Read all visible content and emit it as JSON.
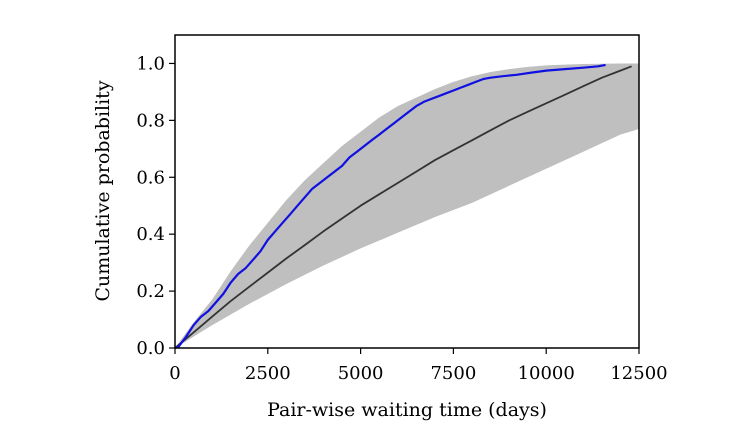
{
  "chart_data": {
    "type": "line",
    "xlabel": "Pair-wise waiting time (days)",
    "ylabel": "Cumulative probability",
    "xlim": [
      0,
      12500
    ],
    "ylim": [
      0,
      1.1
    ],
    "grid": false,
    "legend": "none",
    "x_ticks": [
      0,
      2500,
      5000,
      7500,
      10000,
      12500
    ],
    "x_tick_labels": [
      "0",
      "2500",
      "5000",
      "7500",
      "10000",
      "12500"
    ],
    "y_ticks": [
      0.0,
      0.2,
      0.4,
      0.6,
      0.8,
      1.0
    ],
    "y_tick_labels": [
      "0.0",
      "0.2",
      "0.4",
      "0.6",
      "0.8",
      "1.0"
    ],
    "band": {
      "color": "#bfbfbf",
      "upper": [
        [
          0,
          0
        ],
        [
          500,
          0.09
        ],
        [
          1000,
          0.17
        ],
        [
          1500,
          0.27
        ],
        [
          2000,
          0.36
        ],
        [
          2500,
          0.44
        ],
        [
          3000,
          0.52
        ],
        [
          3500,
          0.59
        ],
        [
          4000,
          0.65
        ],
        [
          4500,
          0.71
        ],
        [
          5000,
          0.76
        ],
        [
          5500,
          0.81
        ],
        [
          6000,
          0.85
        ],
        [
          6500,
          0.88
        ],
        [
          7000,
          0.91
        ],
        [
          7500,
          0.935
        ],
        [
          8000,
          0.955
        ],
        [
          8500,
          0.97
        ],
        [
          9000,
          0.98
        ],
        [
          9500,
          0.988
        ],
        [
          10000,
          0.993
        ],
        [
          10500,
          0.996
        ],
        [
          11000,
          0.998
        ],
        [
          11500,
          0.999
        ],
        [
          12000,
          1.0
        ],
        [
          12500,
          1.0
        ]
      ],
      "lower": [
        [
          0,
          0
        ],
        [
          1000,
          0.08
        ],
        [
          2000,
          0.155
        ],
        [
          3000,
          0.225
        ],
        [
          4000,
          0.29
        ],
        [
          5000,
          0.35
        ],
        [
          6000,
          0.405
        ],
        [
          7000,
          0.46
        ],
        [
          8000,
          0.51
        ],
        [
          9000,
          0.57
        ],
        [
          10000,
          0.63
        ],
        [
          11000,
          0.69
        ],
        [
          11500,
          0.72
        ],
        [
          12000,
          0.75
        ],
        [
          12500,
          0.77
        ]
      ]
    },
    "series": [
      {
        "color": "#333333",
        "points": [
          [
            0,
            0
          ],
          [
            500,
            0.055
          ],
          [
            1000,
            0.11
          ],
          [
            1500,
            0.165
          ],
          [
            2000,
            0.215
          ],
          [
            2500,
            0.265
          ],
          [
            3000,
            0.315
          ],
          [
            3500,
            0.362
          ],
          [
            4000,
            0.41
          ],
          [
            4500,
            0.455
          ],
          [
            5000,
            0.5
          ],
          [
            5500,
            0.54
          ],
          [
            6000,
            0.58
          ],
          [
            6500,
            0.62
          ],
          [
            7000,
            0.66
          ],
          [
            7500,
            0.695
          ],
          [
            8000,
            0.73
          ],
          [
            8500,
            0.765
          ],
          [
            9000,
            0.8
          ],
          [
            9500,
            0.83
          ],
          [
            10000,
            0.86
          ],
          [
            10500,
            0.89
          ],
          [
            11000,
            0.92
          ],
          [
            11500,
            0.95
          ],
          [
            12000,
            0.975
          ],
          [
            12300,
            0.99
          ]
        ]
      },
      {
        "color": "#1010e0",
        "points": [
          [
            0,
            0
          ],
          [
            100,
            0.005
          ],
          [
            300,
            0.04
          ],
          [
            500,
            0.08
          ],
          [
            700,
            0.11
          ],
          [
            900,
            0.13
          ],
          [
            1100,
            0.16
          ],
          [
            1300,
            0.19
          ],
          [
            1500,
            0.23
          ],
          [
            1700,
            0.26
          ],
          [
            1900,
            0.28
          ],
          [
            2100,
            0.31
          ],
          [
            2300,
            0.34
          ],
          [
            2500,
            0.38
          ],
          [
            2700,
            0.41
          ],
          [
            2900,
            0.44
          ],
          [
            3100,
            0.47
          ],
          [
            3300,
            0.5
          ],
          [
            3500,
            0.53
          ],
          [
            3700,
            0.56
          ],
          [
            3900,
            0.58
          ],
          [
            4100,
            0.6
          ],
          [
            4300,
            0.62
          ],
          [
            4500,
            0.64
          ],
          [
            4700,
            0.67
          ],
          [
            4900,
            0.69
          ],
          [
            5100,
            0.71
          ],
          [
            5300,
            0.73
          ],
          [
            5500,
            0.75
          ],
          [
            5700,
            0.77
          ],
          [
            5900,
            0.79
          ],
          [
            6100,
            0.81
          ],
          [
            6300,
            0.83
          ],
          [
            6500,
            0.85
          ],
          [
            6700,
            0.865
          ],
          [
            6900,
            0.875
          ],
          [
            7100,
            0.885
          ],
          [
            7300,
            0.895
          ],
          [
            7500,
            0.905
          ],
          [
            7700,
            0.915
          ],
          [
            7900,
            0.925
          ],
          [
            8100,
            0.935
          ],
          [
            8300,
            0.945
          ],
          [
            8500,
            0.95
          ],
          [
            8800,
            0.955
          ],
          [
            9200,
            0.96
          ],
          [
            9600,
            0.968
          ],
          [
            10000,
            0.975
          ],
          [
            10500,
            0.98
          ],
          [
            11000,
            0.985
          ],
          [
            11400,
            0.99
          ],
          [
            11600,
            0.995
          ]
        ]
      }
    ]
  }
}
